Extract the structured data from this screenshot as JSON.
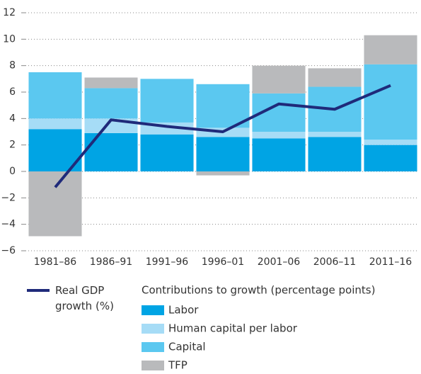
{
  "chart_data": {
    "type": "bar",
    "categories": [
      "1981–86",
      "1986–91",
      "1991–96",
      "1996–01",
      "2001–06",
      "2006–11",
      "2011–16"
    ],
    "stacked": true,
    "legend_title": "Contributions to growth (percentage points)",
    "series": [
      {
        "name": "Labor",
        "color": "#00a4e4",
        "values": [
          3.2,
          2.9,
          2.8,
          2.6,
          2.5,
          2.6,
          2.0
        ]
      },
      {
        "name": "Human capital per labor",
        "color": "#a6dcf6",
        "values": [
          0.8,
          1.1,
          0.9,
          0.7,
          0.5,
          0.4,
          0.4
        ]
      },
      {
        "name": "Capital",
        "color": "#5bc8f0",
        "values": [
          3.5,
          2.3,
          3.3,
          3.3,
          2.9,
          3.4,
          5.7
        ]
      },
      {
        "name": "TFP",
        "color": "#b9babc",
        "values": [
          -4.9,
          0.8,
          0,
          -0.3,
          2.1,
          1.4,
          2.2
        ]
      },
      {
        "name": "Real GDP growth (%)",
        "color": "#1f2a7a",
        "type": "line",
        "values": [
          -1.2,
          3.9,
          3.4,
          3.0,
          5.1,
          4.7,
          6.5
        ]
      }
    ],
    "ylim": [
      -6,
      12
    ],
    "yticks": [
      12,
      10,
      8,
      6,
      4,
      2,
      0,
      {
        "value": -2,
        "label": "−2"
      },
      {
        "value": -4,
        "label": "−4"
      },
      {
        "value": -6,
        "label": "−6"
      }
    ],
    "grid": true
  }
}
